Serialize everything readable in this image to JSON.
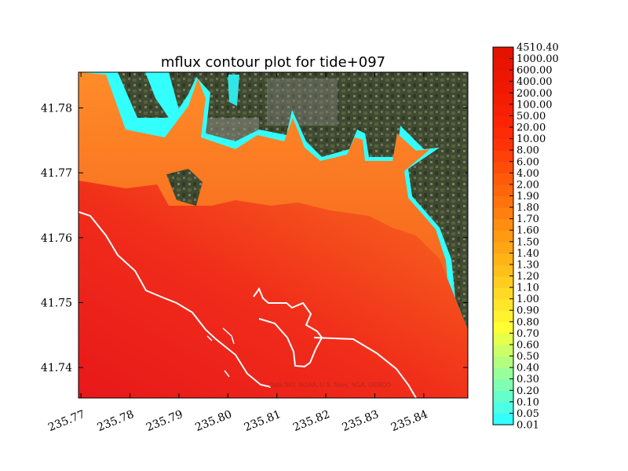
{
  "chart_data": {
    "type": "heatmap",
    "title": "mflux contour plot for tide+097",
    "xlabel": "",
    "ylabel": "",
    "xlim": [
      235.7695,
      235.849
    ],
    "ylim": [
      41.7353,
      41.7855
    ],
    "xticks": [
      235.77,
      235.78,
      235.79,
      235.8,
      235.81,
      235.82,
      235.83,
      235.84
    ],
    "xtick_labels": [
      "235.77",
      "235.78",
      "235.79",
      "235.80",
      "235.81",
      "235.82",
      "235.83",
      "235.84"
    ],
    "yticks": [
      41.74,
      41.75,
      41.76,
      41.77,
      41.78
    ],
    "ytick_labels": [
      "41.74",
      "41.75",
      "41.76",
      "41.77",
      "41.78"
    ],
    "colorbar": {
      "levels": [
        "0.01",
        "0.05",
        "0.10",
        "0.20",
        "0.30",
        "0.40",
        "0.50",
        "0.60",
        "0.70",
        "0.80",
        "0.90",
        "1.00",
        "1.10",
        "1.20",
        "1.30",
        "1.40",
        "1.50",
        "1.60",
        "1.70",
        "1.80",
        "1.90",
        "2.00",
        "4.00",
        "6.00",
        "8.00",
        "10.00",
        "20.00",
        "50.00",
        "100.00",
        "200.00",
        "400.00",
        "600.00",
        "1000.00",
        "4510.40"
      ],
      "colors": [
        "#33ffff",
        "#4dffe6",
        "#66ffcc",
        "#80ffb3",
        "#99ff99",
        "#b3ff80",
        "#ccff66",
        "#e6ff4d",
        "#ffff33",
        "#fff22e",
        "#ffe629",
        "#ffd924",
        "#ffcc1f",
        "#ffbf1a",
        "#ffb317",
        "#ffa614",
        "#ff9a12",
        "#ff8d10",
        "#ff800e",
        "#ff730c",
        "#ff660b",
        "#ff5a0a",
        "#ff4d09",
        "#ff4008",
        "#ff3307",
        "#ff2a06",
        "#fc2405",
        "#f82004",
        "#f41c03",
        "#f01802",
        "#ec1602",
        "#e81401",
        "#e41201"
      ]
    },
    "attribution": "Data SIO, NOAA, U.S. Navy, NGA, GEBCO",
    "grid": false
  }
}
